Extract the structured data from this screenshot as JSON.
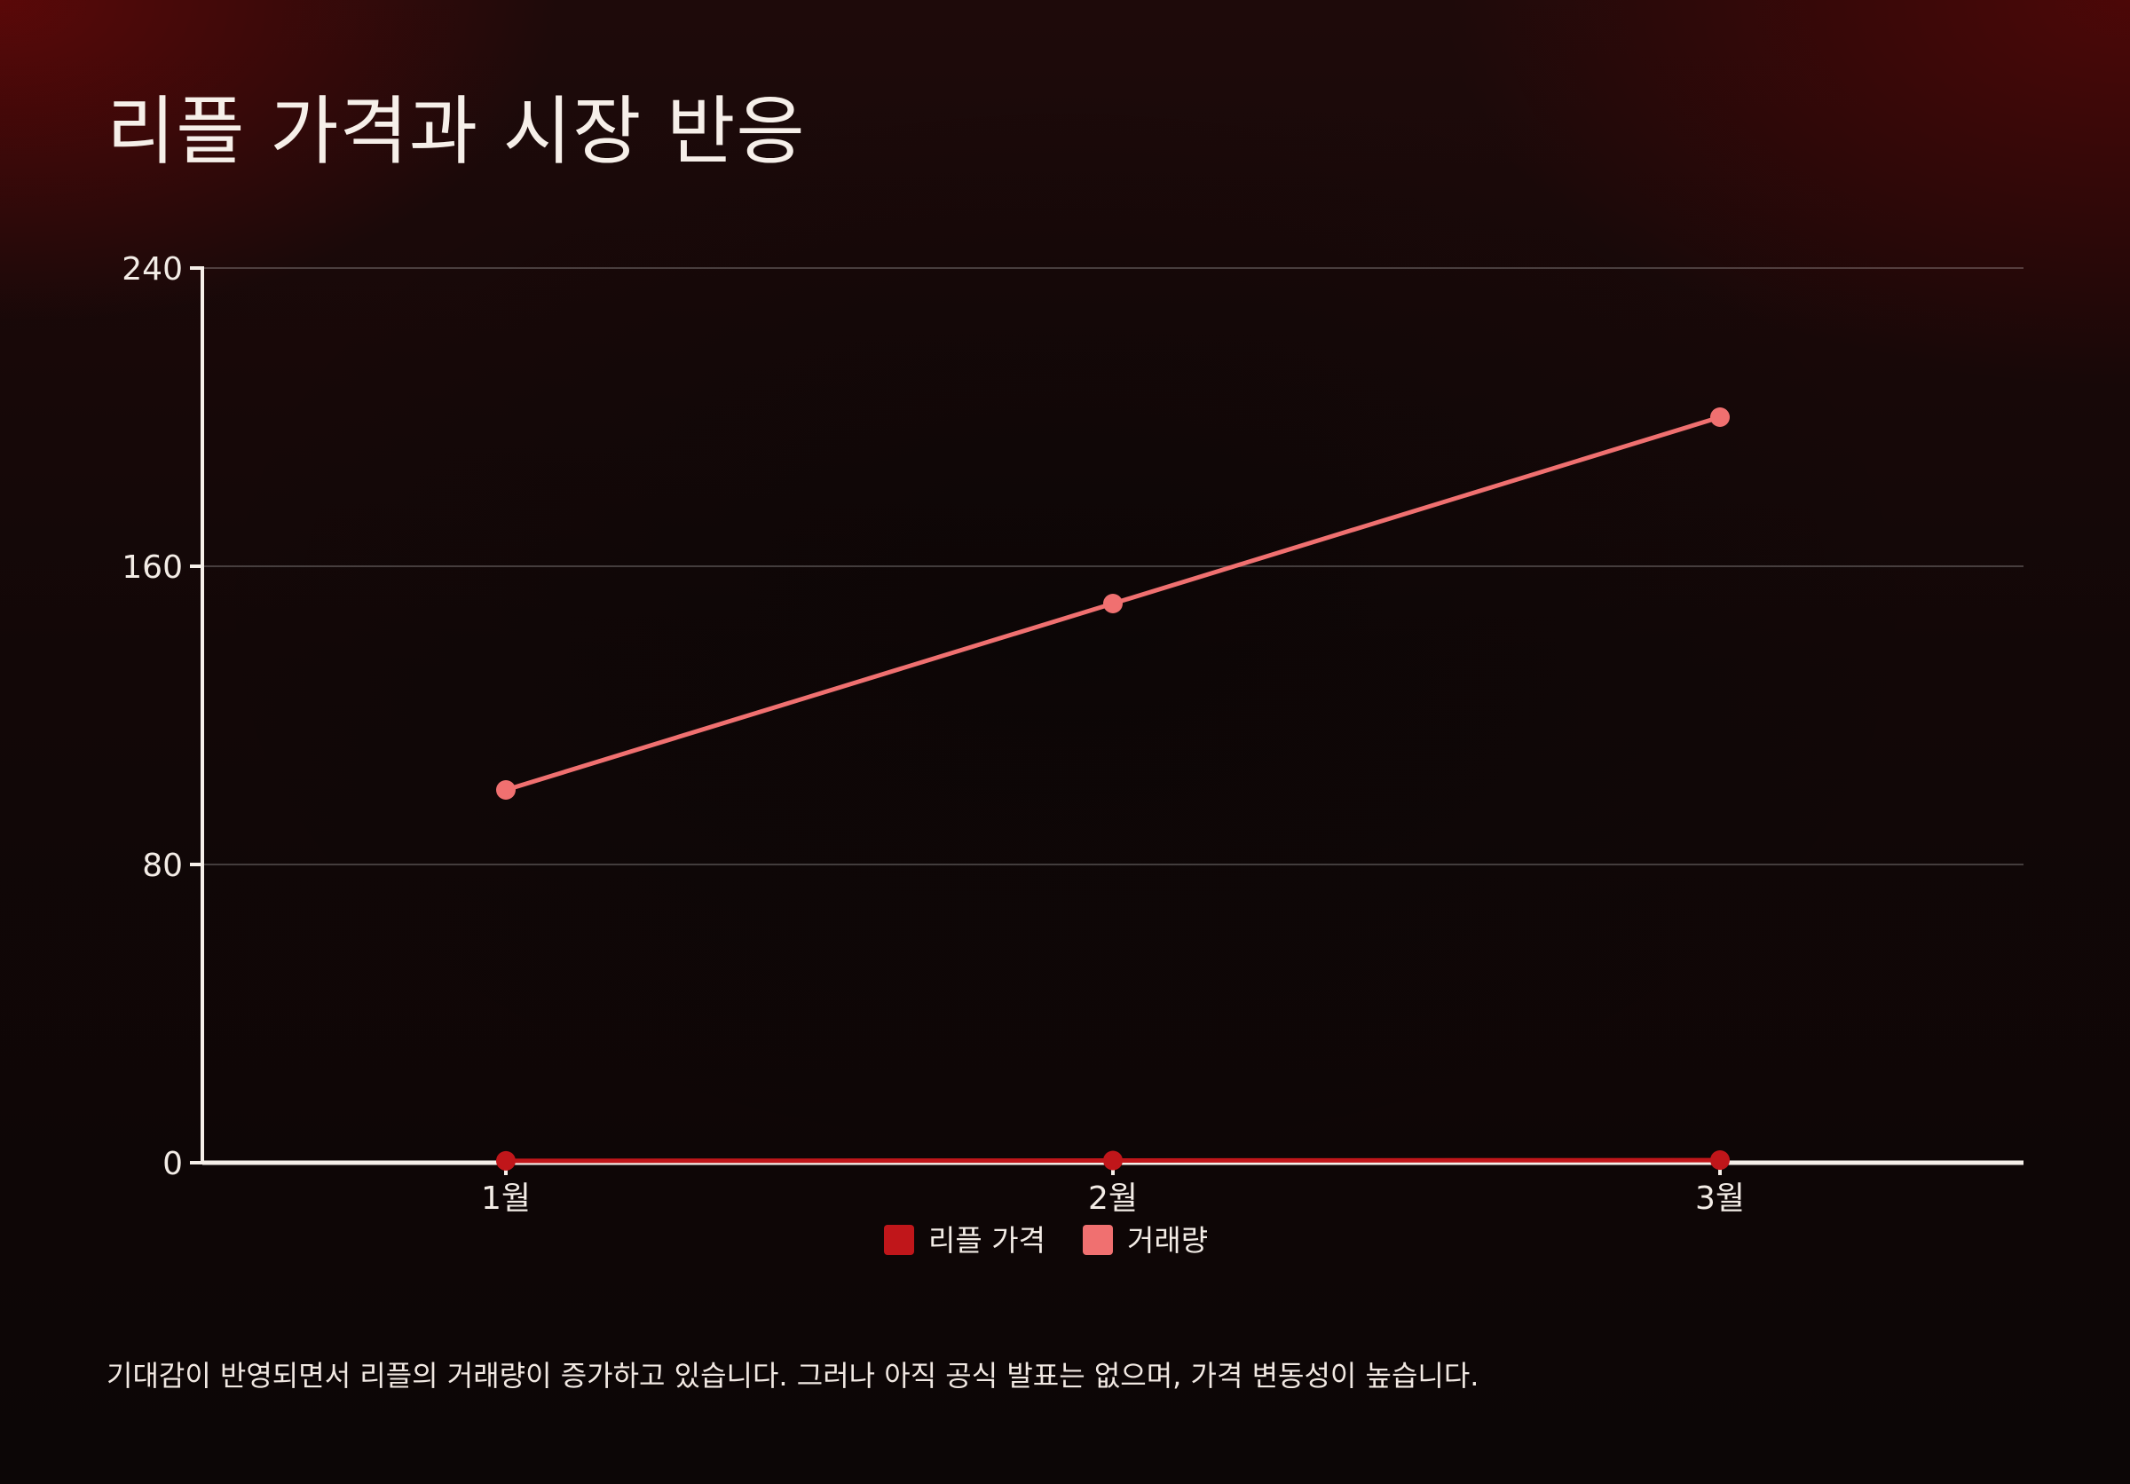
{
  "title": "리플 가격과 시장 반응",
  "caption": "기대감이 반영되면서 리플의 거래량이 증가하고 있습니다. 그러나 아직 공식 발표는 없으며, 가격 변동성이 높습니다.",
  "colors": {
    "price": "#c0161a",
    "volume": "#f07070",
    "axis": "#f6efe9",
    "grid": "rgba(255,255,255,0.22)"
  },
  "chart_data": {
    "type": "line",
    "title": "리플 가격과 시장 반응",
    "categories": [
      "1월",
      "2월",
      "3월"
    ],
    "series": [
      {
        "name": "리플 가격",
        "values": [
          0.5,
          0.6,
          0.7
        ],
        "color": "#c0161a"
      },
      {
        "name": "거래량",
        "values": [
          100,
          150,
          200
        ],
        "color": "#f07070"
      }
    ],
    "ylim": [
      0,
      240
    ],
    "yticks": [
      0,
      80,
      160,
      240
    ],
    "grid": true,
    "legend": "bottom-center"
  }
}
